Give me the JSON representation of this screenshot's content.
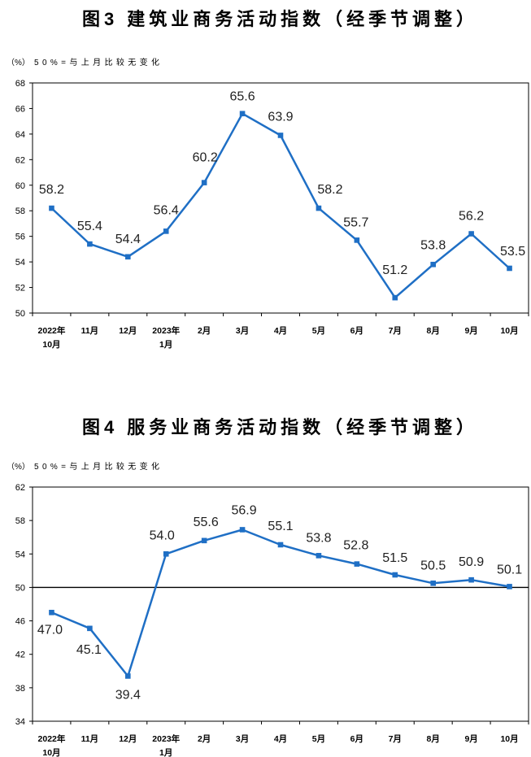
{
  "chart_data": [
    {
      "type": "line",
      "title": "图3 建筑业商务活动指数（经季节调整）",
      "ylabel": "（%）",
      "note": "50%=与上月比较无变化",
      "categories": [
        "2022年\n10月",
        "11月",
        "12月",
        "2023年\n1月",
        "2月",
        "3月",
        "4月",
        "5月",
        "6月",
        "7月",
        "8月",
        "9月",
        "10月"
      ],
      "series": [
        {
          "values": [
            58.2,
            55.4,
            54.4,
            56.4,
            60.2,
            65.6,
            63.9,
            58.2,
            55.7,
            51.2,
            53.8,
            56.2,
            53.5
          ],
          "color": "#1f6fc5",
          "marker": "square"
        }
      ],
      "ylim": [
        50,
        68
      ],
      "yticks": [
        50,
        52,
        54,
        56,
        58,
        60,
        62,
        64,
        66,
        68
      ],
      "data_labels": true,
      "grid": false,
      "legend": "none"
    },
    {
      "type": "line",
      "title": "图4 服务业商务活动指数（经季节调整）",
      "ylabel": "（%）",
      "note": "50%=与上月比较无变化",
      "categories": [
        "2022年\n10月",
        "11月",
        "12月",
        "2023年\n1月",
        "2月",
        "3月",
        "4月",
        "5月",
        "6月",
        "7月",
        "8月",
        "9月",
        "10月"
      ],
      "series": [
        {
          "values": [
            47.0,
            45.1,
            39.4,
            54.0,
            55.6,
            56.9,
            55.1,
            53.8,
            52.8,
            51.5,
            50.5,
            50.9,
            50.1
          ],
          "color": "#1f6fc5",
          "marker": "square"
        }
      ],
      "ylim": [
        34,
        62
      ],
      "yticks": [
        34,
        38,
        42,
        46,
        50,
        54,
        58,
        62
      ],
      "reference_lines": [
        50
      ],
      "data_labels": true,
      "grid": false,
      "legend": "none"
    }
  ]
}
